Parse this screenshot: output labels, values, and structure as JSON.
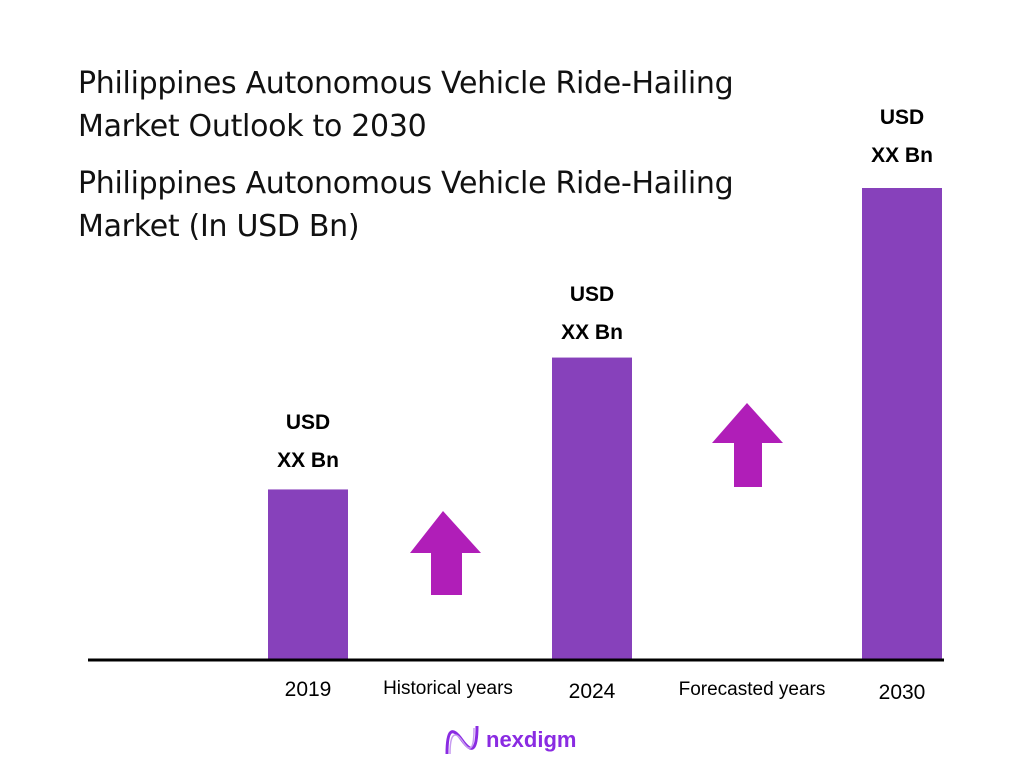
{
  "chart_data": {
    "type": "bar",
    "title": "Philippines Autonomous Vehicle Ride-Hailing Market Outlook to 2030",
    "subtitle": "Philippines Autonomous Vehicle Ride-Hailing Market (In USD Bn)",
    "categories": [
      "2019",
      "2024",
      "2030"
    ],
    "values_relative": [
      0.36,
      0.64,
      1.0
    ],
    "data_labels": [
      [
        "USD",
        "XX Bn"
      ],
      [
        "USD",
        "XX Bn"
      ],
      [
        "USD",
        "XX Bn"
      ]
    ],
    "period_labels": [
      "Historical years",
      "Forecasted years"
    ],
    "bar_color": "#8741bb",
    "arrow_color": "#b01eb8",
    "grid": false
  },
  "logo": {
    "text": "nexdigm"
  }
}
